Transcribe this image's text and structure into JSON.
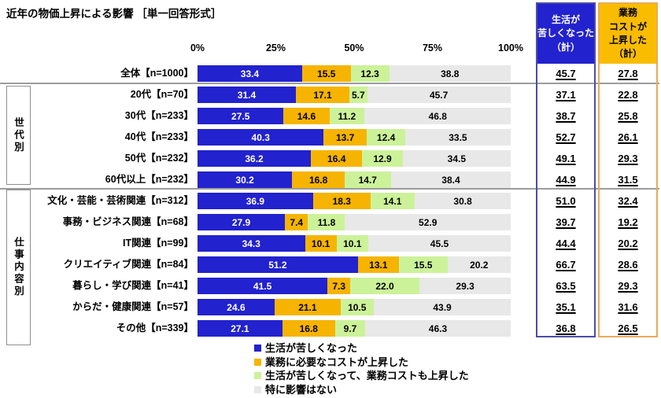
{
  "title": "近年の物価上昇による影響 ［単一回答形式］",
  "axis_ticks": [
    "0%",
    "25%",
    "50%",
    "75%",
    "100%"
  ],
  "colors": {
    "life_hard": "#2222CE",
    "cost_up": "#F6B400",
    "both": "#CCF299",
    "no_effect": "#E8E8E8",
    "summary_life_fill": "#2222CE",
    "summary_life_text": "#FFFFFF",
    "summary_life_border": "#4C4CA8",
    "summary_cost_fill": "#F9BC00",
    "summary_cost_text": "#000000",
    "summary_cost_border": "#E8AA5A"
  },
  "group_labels": [
    "世代別",
    "仕事内容別"
  ],
  "summary_columns": [
    {
      "header": "生活が\n苦しくなった\n（計）"
    },
    {
      "header": "業務\nコストが\n上昇した\n（計）"
    }
  ],
  "legend": [
    {
      "label": "生活が苦しくなった",
      "color": "#2222CE"
    },
    {
      "label": "業務に必要なコストが上昇した",
      "color": "#F6B400"
    },
    {
      "label": "生活が苦しくなって、業務コストも上昇した",
      "color": "#CCF299"
    },
    {
      "label": "特に影響はない",
      "color": "#E8E8E8"
    }
  ],
  "chart_data": {
    "type": "bar",
    "stacked": true,
    "orientation": "horizontal",
    "xlim": [
      0,
      100
    ],
    "x_ticks": [
      0,
      25,
      50,
      75,
      100
    ],
    "series_names": [
      "生活が苦しくなった",
      "業務に必要なコストが上昇した",
      "生活が苦しくなって、業務コストも上昇した",
      "特に影響はない"
    ],
    "summary_names": [
      "生活が苦しくなった（計）",
      "業務コストが上昇した（計）"
    ],
    "rows": [
      {
        "label": "全体【n=1000】",
        "group": "",
        "values": [
          "33.4",
          "15.5",
          "12.3",
          "38.8"
        ],
        "totals": [
          "45.7",
          "27.8"
        ]
      },
      {
        "label": "20代【n=70】",
        "group": "世代別",
        "values": [
          "31.4",
          "17.1",
          "5.7",
          "45.7"
        ],
        "totals": [
          "37.1",
          "22.8"
        ]
      },
      {
        "label": "30代【n=233】",
        "group": "世代別",
        "values": [
          "27.5",
          "14.6",
          "11.2",
          "46.8"
        ],
        "totals": [
          "38.7",
          "25.8"
        ]
      },
      {
        "label": "40代【n=233】",
        "group": "世代別",
        "values": [
          "40.3",
          "13.7",
          "12.4",
          "33.5"
        ],
        "totals": [
          "52.7",
          "26.1"
        ]
      },
      {
        "label": "50代【n=232】",
        "group": "世代別",
        "values": [
          "36.2",
          "16.4",
          "12.9",
          "34.5"
        ],
        "totals": [
          "49.1",
          "29.3"
        ]
      },
      {
        "label": "60代以上【n=232】",
        "group": "世代別",
        "values": [
          "30.2",
          "16.8",
          "14.7",
          "38.4"
        ],
        "totals": [
          "44.9",
          "31.5"
        ]
      },
      {
        "label": "文化・芸能・芸術関連【n=312】",
        "group": "仕事内容別",
        "values": [
          "36.9",
          "18.3",
          "14.1",
          "30.8"
        ],
        "totals": [
          "51.0",
          "32.4"
        ]
      },
      {
        "label": "事務・ビジネス関連【n=68】",
        "group": "仕事内容別",
        "values": [
          "27.9",
          "7.4",
          "11.8",
          "52.9"
        ],
        "totals": [
          "39.7",
          "19.2"
        ]
      },
      {
        "label": "IT関連【n=99】",
        "group": "仕事内容別",
        "values": [
          "34.3",
          "10.1",
          "10.1",
          "45.5"
        ],
        "totals": [
          "44.4",
          "20.2"
        ]
      },
      {
        "label": "クリエイティブ関連【n=84】",
        "group": "仕事内容別",
        "values": [
          "51.2",
          "13.1",
          "15.5",
          "20.2"
        ],
        "totals": [
          "66.7",
          "28.6"
        ]
      },
      {
        "label": "暮らし・学び関連【n=41】",
        "group": "仕事内容別",
        "values": [
          "41.5",
          "7.3",
          "22.0",
          "29.3"
        ],
        "totals": [
          "63.5",
          "29.3"
        ]
      },
      {
        "label": "からだ・健康関連【n=57】",
        "group": "仕事内容別",
        "values": [
          "24.6",
          "21.1",
          "10.5",
          "43.9"
        ],
        "totals": [
          "35.1",
          "31.6"
        ]
      },
      {
        "label": "その他【n=339】",
        "group": "仕事内容別",
        "values": [
          "27.1",
          "16.8",
          "9.7",
          "46.3"
        ],
        "totals": [
          "36.8",
          "26.5"
        ]
      }
    ]
  }
}
